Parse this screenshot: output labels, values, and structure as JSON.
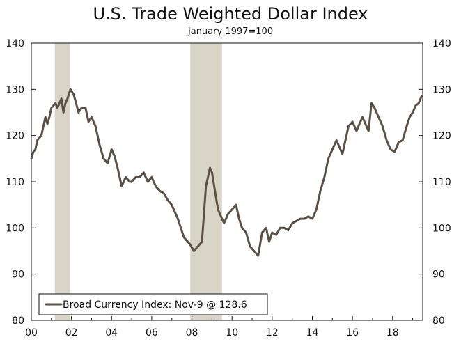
{
  "chart_data": {
    "type": "line",
    "title": "U.S. Trade Weighted Dollar Index",
    "subtitle": "January 1997=100",
    "xlabel": "",
    "ylabel": "",
    "xlim": [
      2000,
      2019.5
    ],
    "ylim": [
      80,
      140
    ],
    "x_ticks": [
      2000,
      2002,
      2004,
      2006,
      2008,
      2010,
      2012,
      2014,
      2016,
      2018
    ],
    "x_tick_labels": [
      "00",
      "02",
      "04",
      "06",
      "08",
      "10",
      "12",
      "14",
      "16",
      "18"
    ],
    "y_ticks": [
      80,
      90,
      100,
      110,
      120,
      130,
      140
    ],
    "y_tick_labels": [
      "80",
      "90",
      "100",
      "110",
      "120",
      "130",
      "140"
    ],
    "recessions": [
      [
        2001.17,
        2001.92
      ],
      [
        2007.92,
        2009.5
      ]
    ],
    "legend": {
      "position": "bottom-left",
      "label": "Broad Currency Index: Nov-9 @ 128.6"
    },
    "colors": {
      "line": "#5a5046",
      "recession": "#d8d4c8"
    },
    "series": [
      {
        "name": "Broad Currency Index",
        "x": [
          2000.0,
          2000.1,
          2000.2,
          2000.3,
          2000.5,
          2000.7,
          2000.8,
          2000.9,
          2001.0,
          2001.2,
          2001.3,
          2001.5,
          2001.6,
          2001.7,
          2001.8,
          2001.95,
          2002.1,
          2002.2,
          2002.35,
          2002.5,
          2002.7,
          2002.85,
          2003.0,
          2003.2,
          2003.4,
          2003.6,
          2003.8,
          2004.0,
          2004.15,
          2004.3,
          2004.5,
          2004.7,
          2004.9,
          2005.0,
          2005.2,
          2005.4,
          2005.6,
          2005.8,
          2006.0,
          2006.2,
          2006.4,
          2006.6,
          2006.8,
          2007.0,
          2007.3,
          2007.6,
          2007.9,
          2008.1,
          2008.3,
          2008.5,
          2008.6,
          2008.7,
          2008.8,
          2008.9,
          2009.0,
          2009.15,
          2009.3,
          2009.45,
          2009.6,
          2009.8,
          2010.0,
          2010.2,
          2010.35,
          2010.5,
          2010.7,
          2010.9,
          2011.1,
          2011.3,
          2011.5,
          2011.7,
          2011.85,
          2012.0,
          2012.2,
          2012.4,
          2012.6,
          2012.8,
          2013.0,
          2013.2,
          2013.4,
          2013.6,
          2013.8,
          2014.0,
          2014.2,
          2014.4,
          2014.6,
          2014.8,
          2015.0,
          2015.2,
          2015.5,
          2015.8,
          2016.0,
          2016.2,
          2016.5,
          2016.8,
          2016.95,
          2017.1,
          2017.3,
          2017.5,
          2017.7,
          2017.9,
          2018.1,
          2018.3,
          2018.5,
          2018.7,
          2018.85,
          2019.0,
          2019.15,
          2019.3,
          2019.45
        ],
        "values": [
          115,
          116.5,
          117,
          119,
          120,
          124,
          122.5,
          124,
          126,
          127,
          126,
          128,
          125,
          127,
          128,
          130,
          129,
          127.5,
          125,
          126,
          126,
          123,
          124,
          122,
          118,
          115,
          114,
          117,
          115.5,
          113,
          109,
          111,
          110,
          110,
          111,
          111,
          112,
          110,
          111,
          109,
          108,
          107.5,
          106,
          105,
          102,
          98,
          96.5,
          95,
          96,
          97,
          103,
          109,
          111,
          113,
          112,
          108,
          104,
          102.5,
          101,
          103,
          104,
          105,
          102,
          100,
          99,
          96,
          95,
          94,
          99,
          100,
          97,
          99,
          98.5,
          100,
          100,
          99.5,
          101,
          101.5,
          102,
          102,
          102.5,
          102,
          104,
          108,
          111,
          115,
          117,
          119,
          116,
          122,
          123,
          121,
          124,
          121,
          127,
          126,
          124,
          122,
          119,
          117,
          116.5,
          118.5,
          119,
          122,
          124,
          125,
          126.5,
          127,
          128.6
        ]
      }
    ]
  }
}
